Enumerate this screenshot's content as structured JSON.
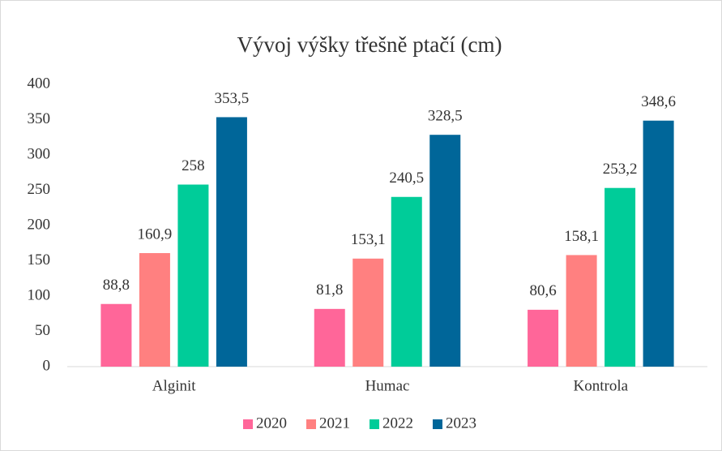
{
  "chart_data": {
    "type": "bar",
    "title": "Vývoj výšky třešně ptačí (cm)",
    "categories": [
      "Alginit",
      "Humac",
      "Kontrola"
    ],
    "series": [
      {
        "name": "2020",
        "color": "#ff6699",
        "values": [
          88.8,
          81.8,
          80.6
        ],
        "value_labels": [
          "88,8",
          "81,8",
          "80,6"
        ]
      },
      {
        "name": "2021",
        "color": "#ff8080",
        "values": [
          160.9,
          153.1,
          158.1
        ],
        "value_labels": [
          "160,9",
          "153,1",
          "158,1"
        ]
      },
      {
        "name": "2022",
        "color": "#00cc99",
        "values": [
          258,
          240.5,
          253.2
        ],
        "value_labels": [
          "258",
          "240,5",
          "253,2"
        ]
      },
      {
        "name": "2023",
        "color": "#006699",
        "values": [
          353.5,
          328.5,
          348.6
        ],
        "value_labels": [
          "353,5",
          "328,5",
          "348,6"
        ]
      }
    ],
    "ylim": [
      0,
      400
    ],
    "yticks": [
      0,
      50,
      100,
      150,
      200,
      250,
      300,
      350,
      400
    ],
    "grid": false,
    "legend": "bottom"
  }
}
